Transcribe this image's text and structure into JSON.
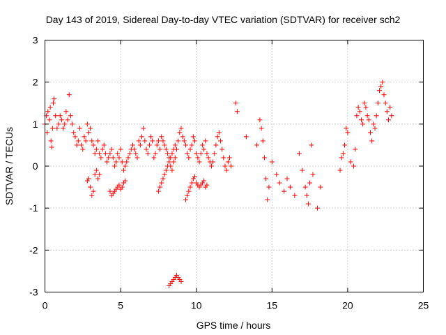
{
  "chart_data": {
    "type": "scatter",
    "title": "Day 143 of 2019, Sidereal Day-to-day VTEC variation (SDTVAR) for receiver sch2",
    "xlabel": "GPS time / hours",
    "ylabel": "SDTVAR / TECUs",
    "xlim": [
      0,
      25
    ],
    "ylim": [
      -3,
      3
    ],
    "xticks": [
      "0",
      "5",
      "10",
      "15",
      "20",
      "25"
    ],
    "yticks": [
      "-3",
      "-2",
      "-1",
      "0",
      "1",
      "2",
      "3"
    ],
    "grid": true,
    "marker": "+",
    "color": "#ff0000",
    "series": [
      {
        "name": "SDTVAR",
        "x": [
          0.0,
          0.1,
          0.15,
          0.2,
          0.3,
          0.35,
          0.4,
          0.45,
          0.5,
          0.55,
          0.6,
          0.7,
          0.8,
          0.9,
          1.0,
          1.1,
          1.2,
          1.3,
          1.4,
          1.5,
          1.6,
          1.7,
          1.8,
          1.9,
          2.0,
          2.1,
          2.2,
          2.3,
          2.4,
          2.5,
          2.6,
          2.7,
          2.8,
          2.9,
          3.0,
          3.1,
          3.2,
          3.3,
          3.4,
          3.5,
          3.6,
          3.7,
          3.8,
          3.9,
          4.0,
          4.1,
          4.2,
          4.3,
          4.4,
          4.5,
          4.6,
          4.7,
          4.8,
          4.9,
          5.0,
          5.1,
          5.2,
          5.3,
          5.4,
          5.5,
          5.6,
          5.7,
          5.8,
          5.9,
          6.0,
          6.1,
          6.2,
          6.3,
          6.4,
          6.5,
          6.6,
          6.7,
          6.8,
          6.9,
          7.0,
          7.1,
          7.2,
          7.3,
          7.4,
          7.5,
          7.6,
          7.7,
          7.8,
          7.9,
          8.0,
          8.1,
          8.2,
          8.3,
          8.4,
          8.5,
          8.6,
          8.7,
          8.8,
          8.9,
          9.0,
          9.1,
          9.2,
          9.3,
          9.4,
          9.5,
          9.6,
          9.7,
          9.8,
          9.9,
          10.0,
          10.1,
          10.2,
          10.3,
          10.4,
          10.5,
          10.6,
          10.7,
          10.8,
          10.9,
          11.0,
          11.1,
          11.2,
          11.3,
          11.4,
          11.5,
          11.6,
          11.7,
          11.8,
          11.9,
          12.0,
          12.1,
          12.2,
          12.3,
          12.6,
          12.7,
          13.3,
          14.0,
          14.2,
          14.3,
          14.4,
          14.5,
          14.6,
          14.7,
          14.8,
          15.0,
          15.3,
          15.5,
          15.8,
          16.0,
          16.2,
          16.5,
          16.8,
          17.0,
          17.2,
          17.3,
          17.4,
          17.5,
          17.6,
          17.7,
          18.0,
          18.2,
          19.5,
          19.6,
          19.7,
          19.8,
          19.9,
          20.0,
          20.2,
          20.4,
          20.5,
          20.6,
          20.7,
          20.8,
          20.9,
          21.0,
          21.1,
          21.2,
          21.3,
          21.4,
          21.5,
          21.6,
          21.7,
          21.8,
          21.9,
          22.0,
          22.1,
          22.2,
          22.3,
          22.4,
          22.5,
          22.6,
          22.7,
          22.8,
          22.9,
          2.8,
          2.9,
          3.0,
          3.1,
          3.2,
          3.3,
          3.4,
          3.5,
          3.6,
          4.3,
          4.4,
          4.5,
          4.6,
          4.7,
          4.8,
          4.9,
          5.0,
          5.1,
          5.2,
          5.3,
          7.5,
          7.6,
          7.7,
          7.8,
          7.9,
          8.0,
          8.1,
          8.2,
          8.3,
          8.4,
          8.5,
          8.6,
          9.3,
          9.4,
          9.5,
          9.6,
          9.7,
          9.8,
          9.9,
          10.0,
          10.1,
          10.2,
          10.3,
          10.4,
          10.5,
          10.6,
          10.7,
          8.2,
          8.3,
          8.4,
          8.5,
          8.6,
          8.7,
          8.8,
          8.9,
          9.0
        ],
        "y": [
          1.0,
          1.2,
          0.8,
          1.3,
          1.1,
          1.4,
          0.6,
          0.45,
          0.9,
          1.5,
          1.6,
          1.2,
          0.9,
          1.0,
          1.2,
          1.1,
          0.9,
          1.0,
          1.3,
          1.1,
          1.7,
          1.2,
          1.0,
          0.8,
          0.7,
          0.5,
          0.6,
          0.9,
          0.5,
          0.4,
          0.7,
          0.6,
          1.0,
          0.8,
          0.9,
          0.6,
          0.5,
          0.3,
          0.4,
          0.6,
          0.3,
          0.2,
          0.4,
          0.5,
          0.3,
          0.1,
          0.2,
          0.3,
          0.4,
          0.2,
          0.0,
          0.1,
          0.3,
          0.2,
          0.4,
          0.1,
          -0.1,
          0.0,
          0.1,
          0.2,
          0.3,
          0.4,
          0.5,
          0.4,
          0.3,
          0.2,
          0.6,
          0.5,
          0.7,
          0.9,
          0.6,
          0.4,
          0.3,
          0.5,
          0.7,
          0.6,
          0.2,
          0.3,
          0.5,
          0.6,
          0.4,
          0.7,
          0.6,
          0.5,
          0.4,
          0.3,
          0.2,
          0.0,
          -0.1,
          0.1,
          0.2,
          0.4,
          0.6,
          0.8,
          0.9,
          0.7,
          0.6,
          0.5,
          0.3,
          0.2,
          0.4,
          0.5,
          0.7,
          0.6,
          0.3,
          0.2,
          0.1,
          0.3,
          0.5,
          0.4,
          0.6,
          0.3,
          0.2,
          0.1,
          0.0,
          0.1,
          0.3,
          0.5,
          0.7,
          0.8,
          0.6,
          0.4,
          0.2,
          0.0,
          -0.1,
          0.1,
          0.2,
          0.0,
          1.5,
          1.3,
          0.7,
          0.5,
          1.1,
          0.9,
          0.6,
          0.2,
          -0.3,
          -0.8,
          -0.5,
          0.1,
          -0.2,
          -0.4,
          -0.6,
          -0.3,
          -0.5,
          -0.7,
          0.3,
          -0.1,
          -0.5,
          -0.7,
          -0.9,
          -0.4,
          0.5,
          -0.2,
          -1.0,
          -0.5,
          -0.1,
          0.2,
          0.3,
          0.5,
          0.9,
          0.8,
          0.1,
          0.0,
          0.4,
          1.2,
          1.4,
          1.3,
          1.1,
          1.0,
          1.5,
          1.4,
          1.2,
          1.1,
          0.8,
          0.6,
          1.0,
          0.9,
          1.2,
          1.5,
          1.8,
          1.9,
          2.0,
          1.7,
          1.5,
          1.3,
          1.1,
          1.4,
          1.2,
          -0.35,
          -0.3,
          -0.5,
          -0.7,
          -0.6,
          -0.2,
          -0.1,
          -0.3,
          -0.2,
          -0.6,
          -0.7,
          -0.65,
          -0.6,
          -0.55,
          -0.5,
          -0.45,
          -0.55,
          -0.5,
          -0.4,
          -0.35,
          -0.6,
          -0.5,
          -0.4,
          -0.3,
          -0.2,
          -0.1,
          0.0,
          0.1,
          0.2,
          0.3,
          0.4,
          0.5,
          -0.8,
          -0.7,
          -0.6,
          -0.5,
          -0.4,
          -0.3,
          -0.25,
          -0.4,
          -0.45,
          -0.5,
          -0.45,
          -0.4,
          -0.35,
          -0.5,
          -0.45,
          -2.85,
          -2.8,
          -2.75,
          -2.7,
          -2.65,
          -2.6,
          -2.65,
          -2.7,
          -2.75
        ]
      }
    ]
  }
}
